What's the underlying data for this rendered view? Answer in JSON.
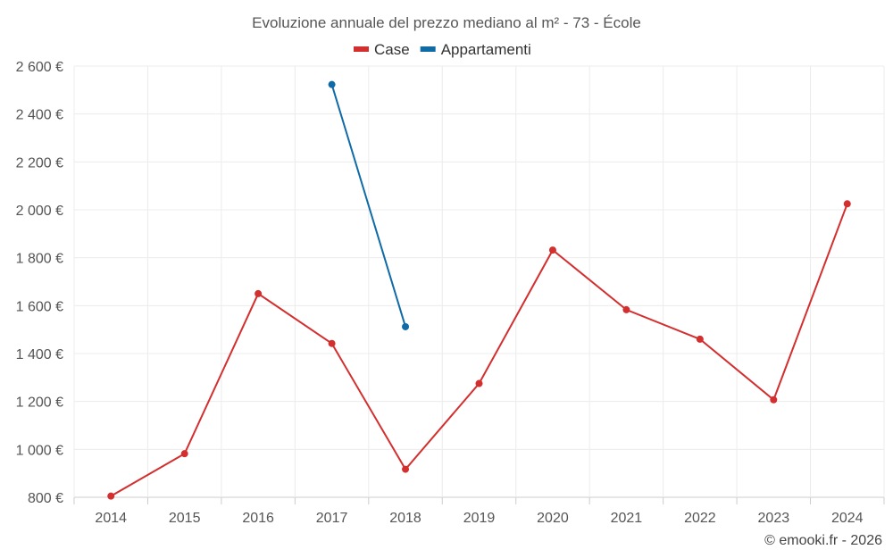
{
  "chart_data": {
    "type": "line",
    "title": "Evoluzione annuale del prezzo mediano al m² - 73 - École",
    "categories": [
      "2014",
      "2015",
      "2016",
      "2017",
      "2018",
      "2019",
      "2020",
      "2021",
      "2022",
      "2023",
      "2024"
    ],
    "series": [
      {
        "name": "Case",
        "color": "#d32f2f",
        "values": [
          805,
          982,
          1650,
          1442,
          917,
          1275,
          1832,
          1583,
          1460,
          1207,
          2025
        ]
      },
      {
        "name": "Appartamenti",
        "color": "#0f6aa6",
        "values": [
          null,
          null,
          null,
          2523,
          1512,
          null,
          null,
          null,
          null,
          null,
          null
        ]
      }
    ],
    "ylim": [
      800,
      2600
    ],
    "yticks": [
      800,
      1000,
      1200,
      1400,
      1600,
      1800,
      2000,
      2200,
      2400,
      2600
    ],
    "ytick_labels": [
      "800 €",
      "1 000 €",
      "1 200 €",
      "1 400 €",
      "1 600 €",
      "1 800 €",
      "2 000 €",
      "2 200 €",
      "2 400 €",
      "2 600 €"
    ],
    "grid": true,
    "legend": "top-center",
    "xlabel": "",
    "ylabel": ""
  },
  "credit": "© emooki.fr - 2026"
}
